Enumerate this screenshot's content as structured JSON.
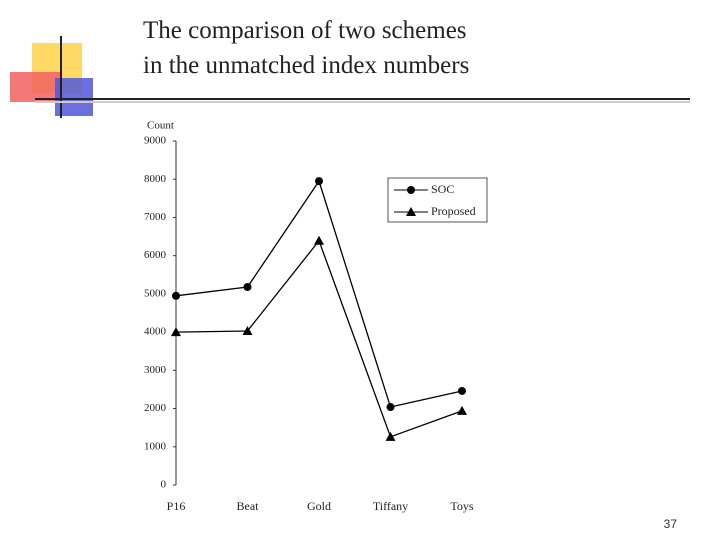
{
  "slide": {
    "title_lines": [
      "The comparison of two schemes",
      "in the unmatched index numbers"
    ],
    "page_number": 37
  },
  "chart_data": {
    "type": "line",
    "y_label": "Count",
    "categories": [
      "P16",
      "Beat",
      "Gold",
      "Tiffany",
      "Toys"
    ],
    "series": [
      {
        "name": "SOC",
        "color": "#000000",
        "marker": "circle",
        "values": [
          4950,
          5180,
          7950,
          2040,
          2460
        ]
      },
      {
        "name": "Proposed",
        "color": "#000000",
        "marker": "triangle",
        "values": [
          4000,
          4030,
          6390,
          1260,
          1940
        ]
      }
    ],
    "ylim": [
      0,
      9000
    ],
    "yticks": [
      0,
      1000,
      2000,
      3000,
      4000,
      5000,
      6000,
      7000,
      8000,
      9000
    ],
    "grid": false,
    "legend": "upper right"
  }
}
